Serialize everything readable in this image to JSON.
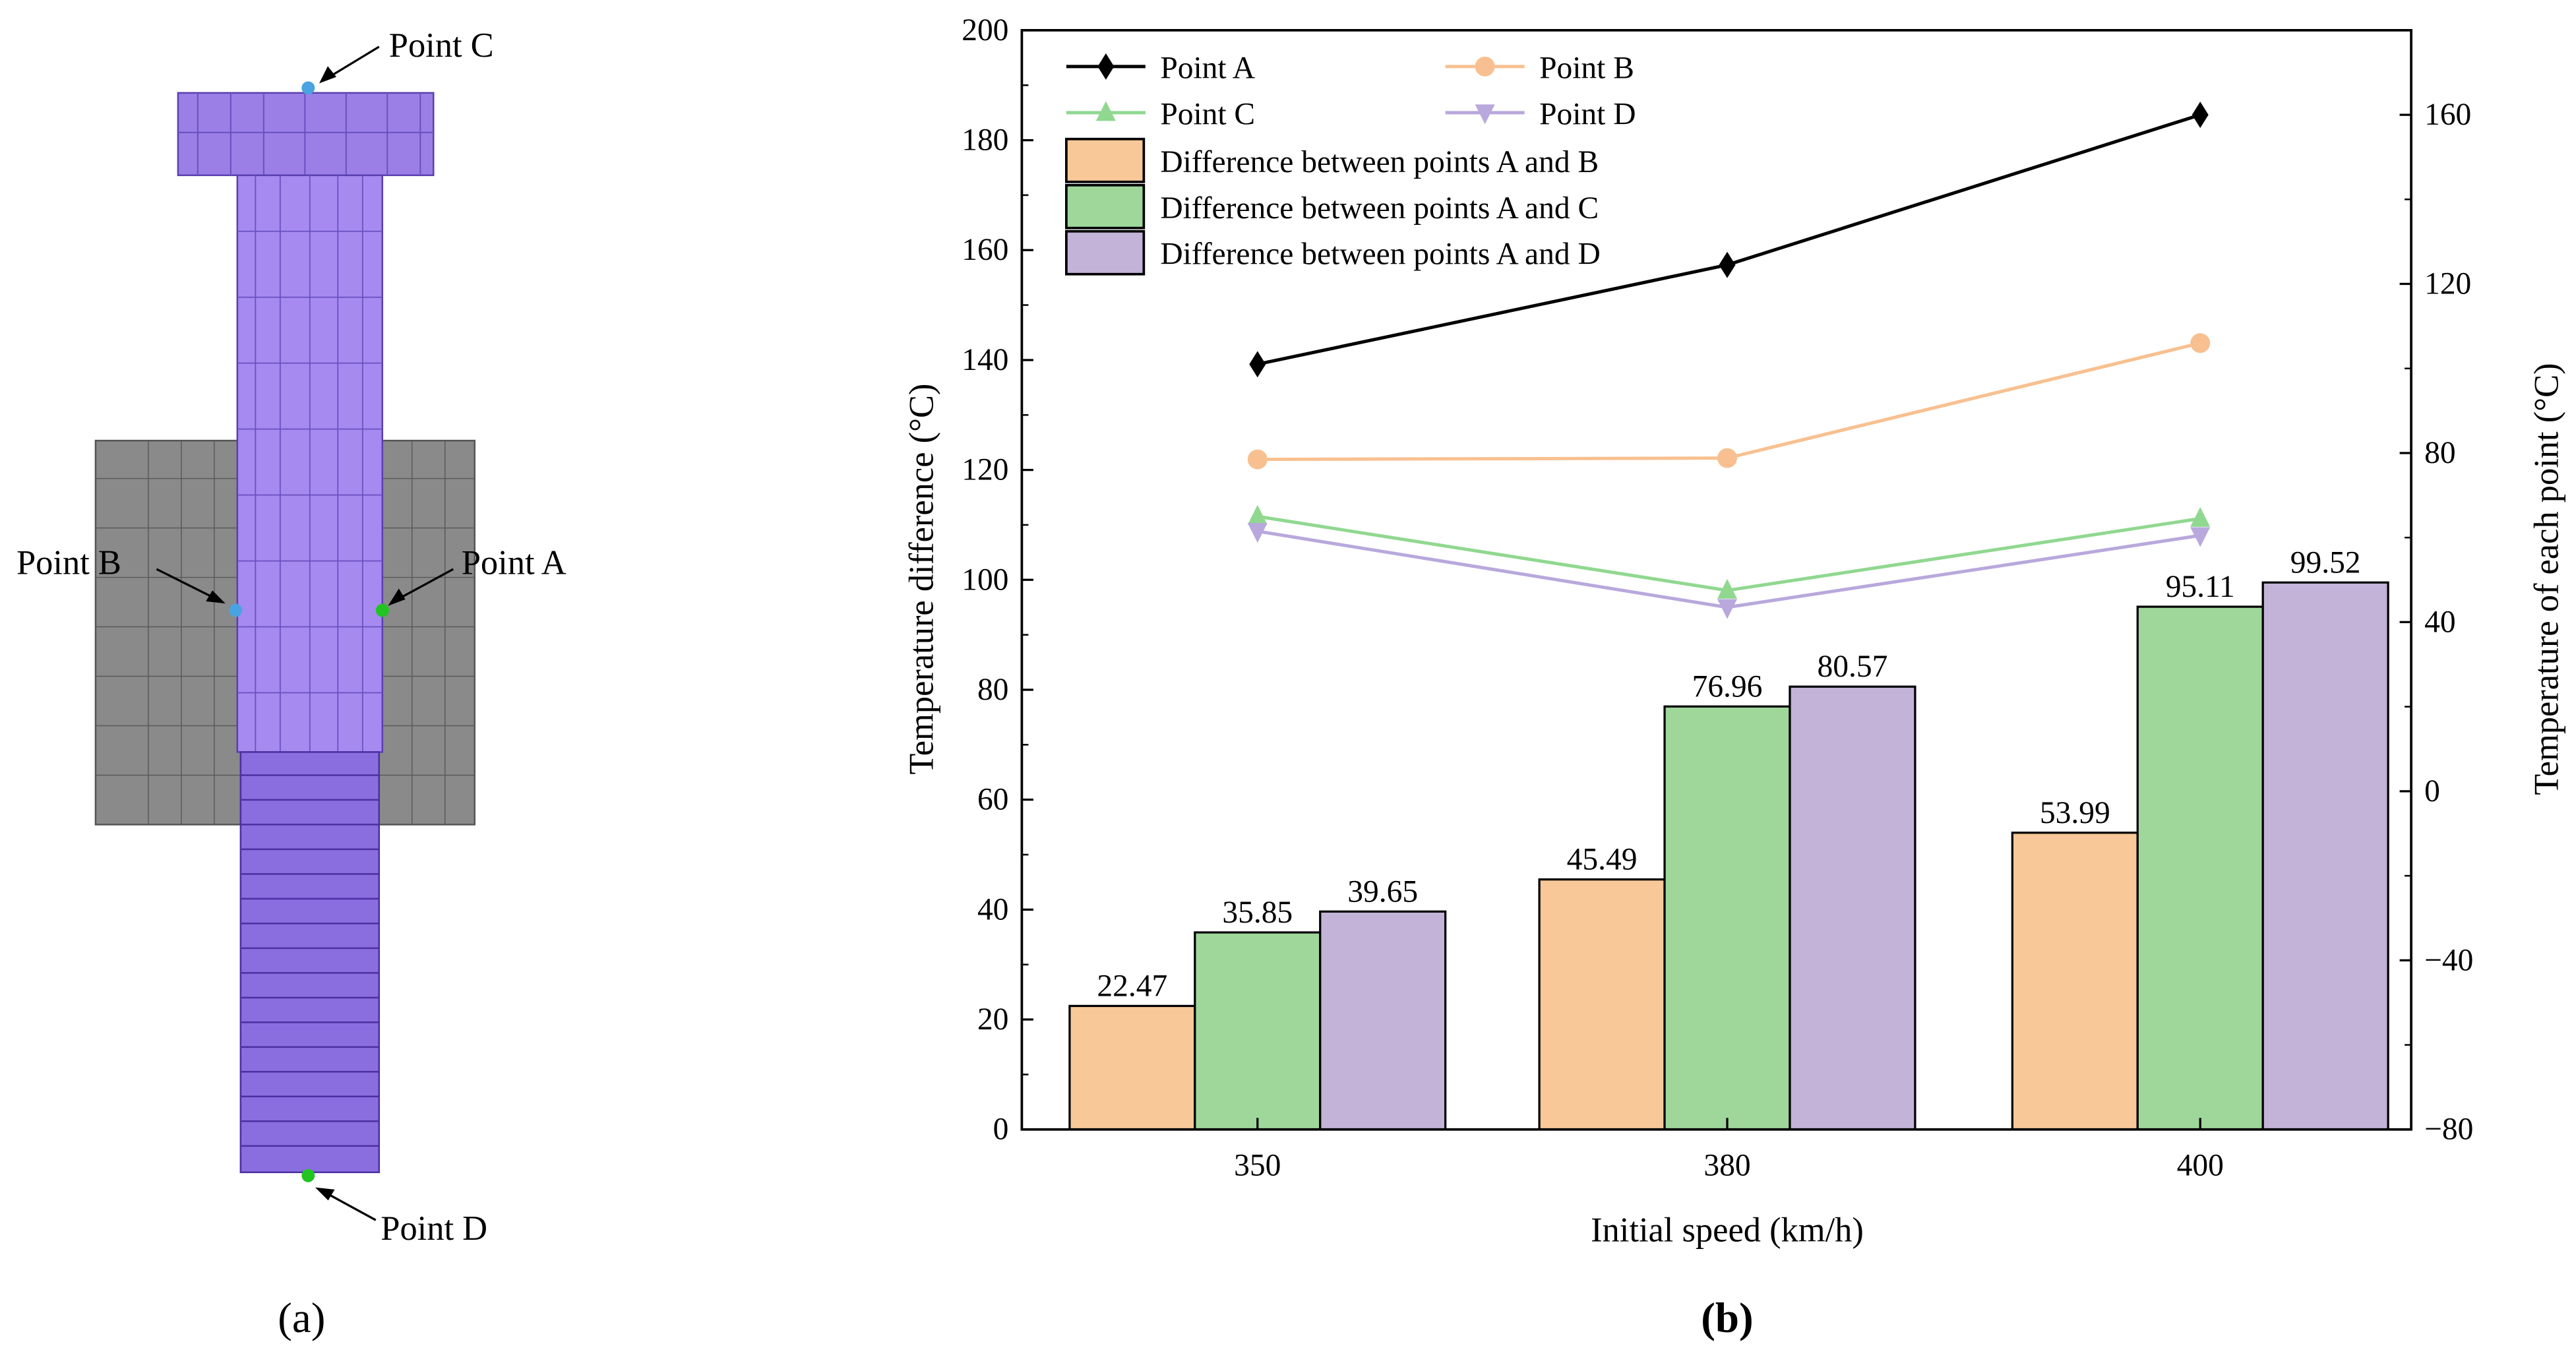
{
  "panel_a": {
    "caption": "(a)",
    "labels": {
      "point_a": "Point A",
      "point_b": "Point B",
      "point_c": "Point C",
      "point_d": "Point D"
    },
    "colors": {
      "bolt": "#9b7fe6",
      "plate": "#8a8a8a",
      "point_blue": "#4aa3e0",
      "point_green": "#22c422"
    }
  },
  "panel_b": {
    "caption": "(b)"
  },
  "chart_data": {
    "type": "bar",
    "title": "",
    "xlabel": "Initial speed (km/h)",
    "ylabel": "Temperature difference (°C)",
    "y2label": "Temperature of each point (°C)",
    "categories": [
      "350",
      "380",
      "400"
    ],
    "ylim": [
      0,
      200
    ],
    "yticks": [
      "0",
      "20",
      "40",
      "60",
      "80",
      "100",
      "120",
      "140",
      "160",
      "180",
      "200"
    ],
    "y2lim": [
      -80,
      180
    ],
    "y2ticks": [
      "−80",
      "−40",
      "0",
      "40",
      "80",
      "120",
      "160"
    ],
    "legend_position": "top-left",
    "bar_series": [
      {
        "name": "Difference between points A and B",
        "color": "#f8c898",
        "values": [
          22.47,
          45.49,
          53.99
        ],
        "labels": [
          "22.47",
          "45.49",
          "53.99"
        ]
      },
      {
        "name": "Difference between points A and C",
        "color": "#9fd79b",
        "values": [
          35.85,
          76.96,
          95.11
        ],
        "labels": [
          "35.85",
          "76.96",
          "95.11"
        ]
      },
      {
        "name": "Difference between points A and D",
        "color": "#c3b3d8",
        "values": [
          39.65,
          80.57,
          99.52
        ],
        "labels": [
          "39.65",
          "80.57",
          "99.52"
        ]
      }
    ],
    "line_series": [
      {
        "name": "Point A",
        "color": "#000000",
        "marker": "diamond",
        "axis": "right",
        "values": [
          101,
          124.5,
          160
        ]
      },
      {
        "name": "Point B",
        "color": "#f8c090",
        "marker": "circle",
        "axis": "right",
        "values": [
          78.5,
          78.8,
          106
        ]
      },
      {
        "name": "Point C",
        "color": "#90d890",
        "marker": "triangle-up",
        "axis": "right",
        "values": [
          65,
          47.5,
          64.5
        ]
      },
      {
        "name": "Point D",
        "color": "#b8a8dc",
        "marker": "triangle-down",
        "axis": "right",
        "values": [
          61.5,
          43.5,
          60.5
        ]
      }
    ]
  }
}
